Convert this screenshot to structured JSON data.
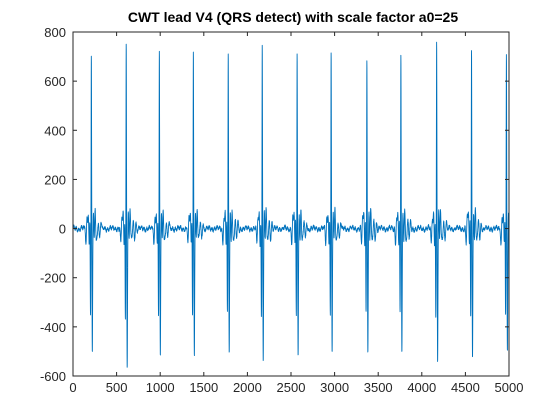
{
  "chart_data": {
    "type": "line",
    "title": "CWT lead V4 (QRS detect) with scale factor a0=25",
    "xlabel": "",
    "ylabel": "",
    "xlim": [
      0,
      5000
    ],
    "ylim": [
      -600,
      800
    ],
    "x_ticks": [
      0,
      500,
      1000,
      1500,
      2000,
      2500,
      3000,
      3500,
      4000,
      4500,
      5000
    ],
    "y_ticks": [
      -600,
      -400,
      -200,
      0,
      200,
      400,
      600,
      800
    ],
    "x_tick_labels": [
      "0",
      "500",
      "1000",
      "1500",
      "2000",
      "2500",
      "3000",
      "3500",
      "4000",
      "4500",
      "5000"
    ],
    "y_tick_labels": [
      "-600",
      "-400",
      "-200",
      "0",
      "200",
      "400",
      "600",
      "800"
    ],
    "grid": false,
    "line_color": "#0072BD",
    "series": [
      {
        "beats": [
          {
            "x": 210,
            "peak": 705,
            "trough1": -340,
            "trough2": -475
          },
          {
            "x": 610,
            "peak": 760,
            "trough1": -365,
            "trough2": -520
          },
          {
            "x": 990,
            "peak": 720,
            "trough1": -350,
            "trough2": -485
          },
          {
            "x": 1380,
            "peak": 720,
            "trough1": -340,
            "trough2": -480
          },
          {
            "x": 1780,
            "peak": 715,
            "trough1": -345,
            "trough2": -470
          },
          {
            "x": 2170,
            "peak": 755,
            "trough1": -360,
            "trough2": -505
          },
          {
            "x": 2570,
            "peak": 720,
            "trough1": -345,
            "trough2": -490
          },
          {
            "x": 2960,
            "peak": 720,
            "trough1": -340,
            "trough2": -480
          },
          {
            "x": 3370,
            "peak": 700,
            "trough1": -335,
            "trough2": -465
          },
          {
            "x": 3760,
            "peak": 710,
            "trough1": -345,
            "trough2": -475
          },
          {
            "x": 4170,
            "peak": 755,
            "trough1": -360,
            "trough2": -505
          },
          {
            "x": 4570,
            "peak": 740,
            "trough1": -355,
            "trough2": -495
          },
          {
            "x": 4970,
            "peak": 700,
            "trough1": -340,
            "trough2": -470
          }
        ]
      }
    ]
  }
}
